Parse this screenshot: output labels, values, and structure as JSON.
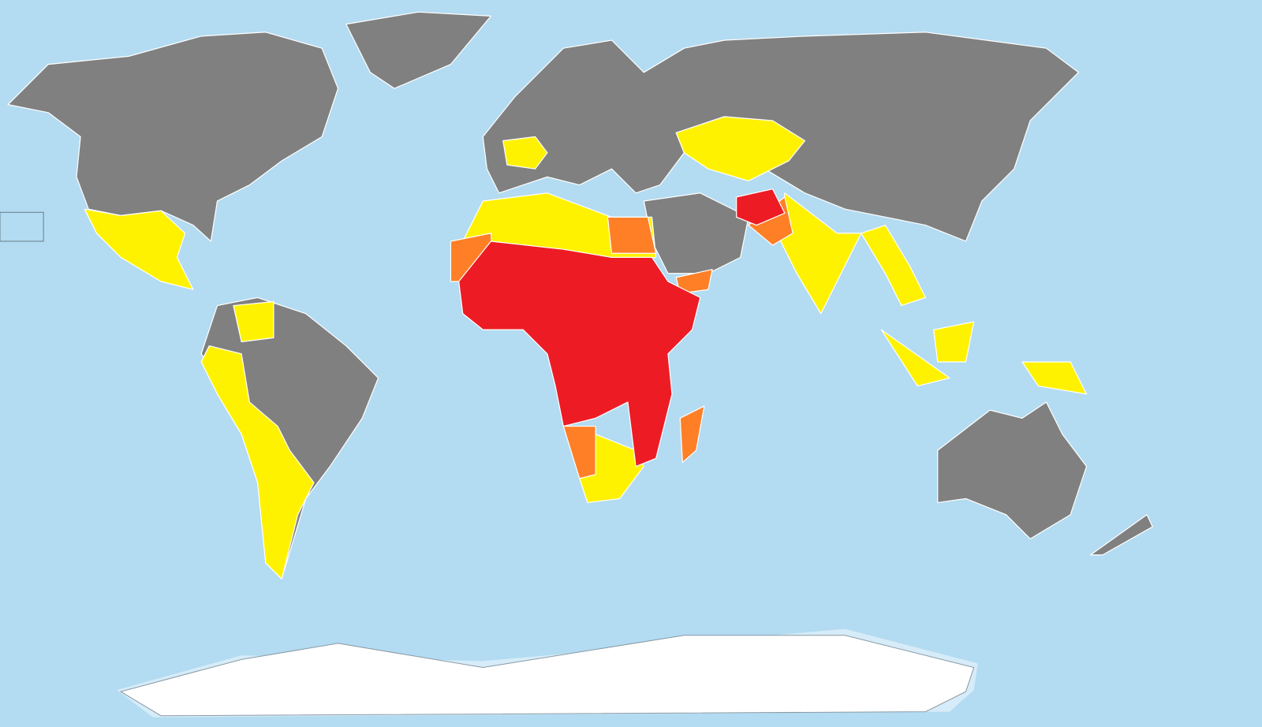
{
  "map": {
    "type": "choropleth world map",
    "projection": "equirectangular-like",
    "legend": null,
    "colors": {
      "ocean": "#b3dbf1",
      "gray": "#808080",
      "yellow": "#fff200",
      "orange": "#ff7f27",
      "red": "#ed1c24",
      "antarctica": "#ffffff",
      "ice_shelf": "#d6ecf8",
      "border": "#ffffff"
    }
  }
}
